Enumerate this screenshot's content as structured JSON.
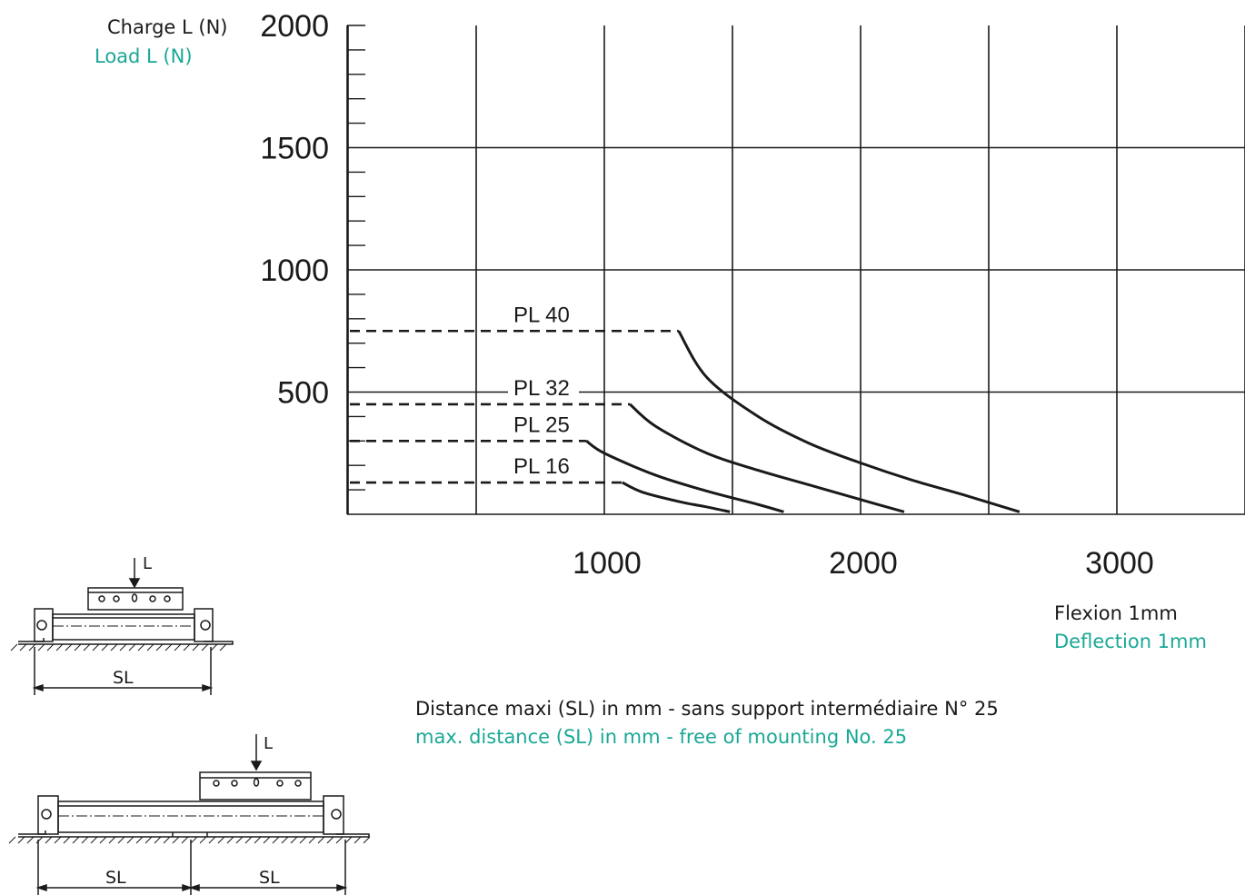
{
  "labels": {
    "y_label_fr": "Charge L (N)",
    "y_label_en": "Load L (N)",
    "x_label_fr": "Flexion 1mm",
    "x_label_en": "Deflection 1mm",
    "caption_fr": "Distance maxi (SL) in mm - sans support intermédiaire N° 25",
    "caption_en": "max. distance (SL) in mm - free of mounting No. 25",
    "diagram1_load": "L",
    "diagram1_span": "SL",
    "diagram2_load": "L",
    "diagram2_span_left": "SL",
    "diagram2_span_right": "SL"
  },
  "colors": {
    "english_text": "#1aa896",
    "line": "#1a1a1a"
  },
  "chart_data": {
    "type": "line",
    "title": "",
    "xlabel": "Flexion 1mm / Deflection 1mm",
    "ylabel": "Charge L (N) / Load L (N)",
    "xlim": [
      0,
      3500
    ],
    "ylim": [
      0,
      2000
    ],
    "x_ticks": [
      1000,
      2000,
      3000
    ],
    "x_tick_labels": [
      "1000",
      "2000",
      "3000"
    ],
    "y_ticks": [
      500,
      1000,
      1500,
      2000
    ],
    "y_tick_labels": [
      "500",
      "1000",
      "1500",
      "2000"
    ],
    "grid": true,
    "series": [
      {
        "name": "PL 40",
        "plateau": 750,
        "x": [
          1290,
          1400,
          1600,
          1800,
          2000,
          2200,
          2400,
          2620
        ],
        "y": [
          750,
          560,
          400,
          290,
          210,
          140,
          80,
          10
        ]
      },
      {
        "name": "PL 32",
        "plateau": 450,
        "x": [
          1100,
          1200,
          1400,
          1600,
          1800,
          2000,
          2170
        ],
        "y": [
          450,
          360,
          250,
          180,
          120,
          60,
          10
        ]
      },
      {
        "name": "PL 25",
        "plateau": 300,
        "x": [
          930,
          1000,
          1200,
          1400,
          1600,
          1700
        ],
        "y": [
          300,
          250,
          160,
          95,
          40,
          10
        ]
      },
      {
        "name": "PL 16",
        "plateau": 130,
        "x": [
          1070,
          1150,
          1300,
          1400,
          1490
        ],
        "y": [
          130,
          90,
          50,
          30,
          10
        ]
      }
    ]
  }
}
